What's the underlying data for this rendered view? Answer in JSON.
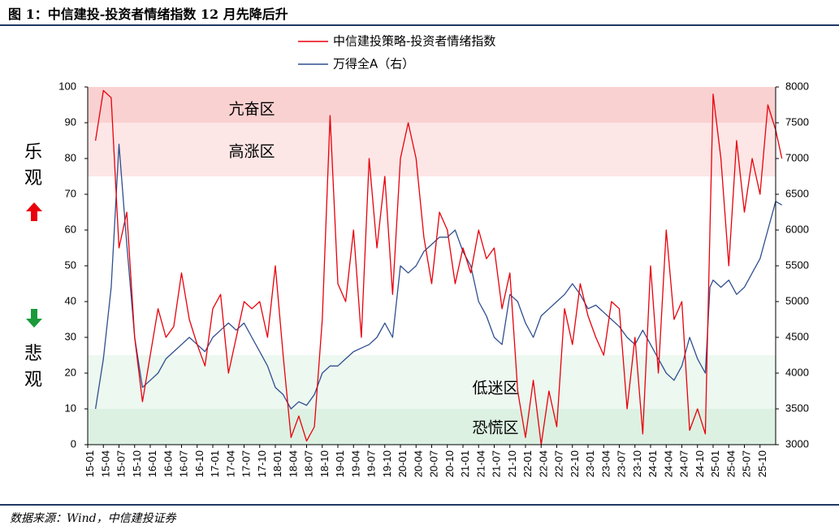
{
  "figure": {
    "title": "图 1：中信建投-投资者情绪指数 12 月先降后升",
    "source": "数据来源：Wind，中信建投证券",
    "side_top": [
      "乐",
      "观"
    ],
    "side_bottom": [
      "悲",
      "观"
    ],
    "arrow_up_color": "#e8000b",
    "arrow_down_color": "#1a9a3a"
  },
  "chart_data": {
    "type": "line",
    "legend_placement": "top-center",
    "grid": false,
    "x_ticks": [
      "15-01",
      "15-04",
      "15-07",
      "15-10",
      "16-01",
      "16-04",
      "16-07",
      "16-10",
      "17-01",
      "17-04",
      "17-07",
      "17-10",
      "18-01",
      "18-04",
      "18-07",
      "18-10",
      "19-01",
      "19-04",
      "19-07",
      "19-10",
      "20-01",
      "20-04",
      "20-07",
      "20-10",
      "21-01",
      "21-04",
      "21-07",
      "21-10",
      "22-01",
      "22-04",
      "22-07",
      "22-10",
      "23-01",
      "23-04",
      "23-07",
      "23-10",
      "24-01",
      "24-04",
      "24-07",
      "24-10",
      "25-01",
      "25-04",
      "25-07",
      "25-10"
    ],
    "y_left": {
      "min": 0,
      "max": 100,
      "ticks": [
        0,
        10,
        20,
        30,
        40,
        50,
        60,
        70,
        80,
        90,
        100
      ]
    },
    "y_right": {
      "min": 3000,
      "max": 8000,
      "ticks": [
        3000,
        3500,
        4000,
        4500,
        5000,
        5500,
        6000,
        6500,
        7000,
        7500,
        8000
      ]
    },
    "zones": [
      {
        "label": "亢奋区",
        "from": 90,
        "to": 100,
        "color": "#fad1d1"
      },
      {
        "label": "高涨区",
        "from": 75,
        "to": 90,
        "color": "#fde6e6"
      },
      {
        "label": "低迷区",
        "from": 10,
        "to": 25,
        "color": "#edf8f0"
      },
      {
        "label": "恐慌区",
        "from": 0,
        "to": 10,
        "color": "#dcf1e2"
      }
    ],
    "series": [
      {
        "name": "中信建投策略-投资者情绪指数",
        "axis": "left",
        "color": "#e8000b",
        "x_index": [
          0,
          0.5,
          1,
          1.5,
          2,
          2.5,
          3,
          3.5,
          4,
          4.5,
          5,
          5.5,
          6,
          6.5,
          7,
          7.5,
          8,
          8.5,
          9,
          9.5,
          10,
          10.5,
          11,
          11.5,
          12,
          12.5,
          13,
          13.5,
          14,
          14.5,
          15,
          15.5,
          16,
          16.5,
          17,
          17.5,
          18,
          18.5,
          19,
          19.5,
          20,
          20.5,
          21,
          21.5,
          22,
          22.5,
          23,
          23.5,
          24,
          24.5,
          25,
          25.5,
          26,
          26.5,
          27,
          27.5,
          28,
          28.5,
          29,
          29.5,
          30,
          30.5,
          31,
          31.5,
          32,
          32.5,
          33,
          33.5,
          34,
          34.5,
          35,
          35.5,
          36,
          36.5,
          37,
          37.5,
          38,
          38.5,
          39,
          39.3,
          39.5,
          40,
          40.5,
          41,
          41.5,
          42,
          42.5,
          43,
          43.5,
          43.9
        ],
        "values": [
          85,
          99,
          97,
          55,
          65,
          30,
          12,
          25,
          38,
          30,
          33,
          48,
          35,
          28,
          22,
          38,
          42,
          20,
          30,
          40,
          38,
          40,
          30,
          50,
          25,
          2,
          8,
          1,
          5,
          35,
          92,
          45,
          40,
          60,
          30,
          80,
          55,
          75,
          42,
          80,
          90,
          80,
          58,
          45,
          65,
          60,
          45,
          55,
          48,
          60,
          52,
          55,
          38,
          48,
          15,
          2,
          18,
          0,
          15,
          5,
          38,
          28,
          45,
          36,
          30,
          25,
          40,
          38,
          10,
          30,
          3,
          50,
          20,
          60,
          35,
          40,
          4,
          10,
          3,
          60,
          98,
          80,
          50,
          85,
          65,
          80,
          70,
          95,
          88,
          80
        ]
      },
      {
        "name": "万得全A（右）",
        "axis": "right",
        "color": "#2f4f8f",
        "x_index": [
          0,
          0.5,
          1,
          1.5,
          2,
          2.5,
          3,
          3.5,
          4,
          4.5,
          5,
          5.5,
          6,
          6.5,
          7,
          7.5,
          8,
          8.5,
          9,
          9.5,
          10,
          10.5,
          11,
          11.5,
          12,
          12.5,
          13,
          13.5,
          14,
          14.5,
          15,
          15.5,
          16,
          16.5,
          17,
          17.5,
          18,
          18.5,
          19,
          19.5,
          20,
          20.5,
          21,
          21.5,
          22,
          22.5,
          23,
          23.5,
          24,
          24.5,
          25,
          25.5,
          26,
          26.5,
          27,
          27.5,
          28,
          28.5,
          29,
          29.5,
          30,
          30.5,
          31,
          31.5,
          32,
          32.5,
          33,
          33.5,
          34,
          34.5,
          35,
          35.5,
          36,
          36.5,
          37,
          37.5,
          38,
          38.5,
          39,
          39.3,
          39.5,
          40,
          40.5,
          41,
          41.5,
          42,
          42.5,
          43,
          43.5,
          43.9
        ],
        "values": [
          3500,
          4200,
          5200,
          7200,
          5800,
          4500,
          3800,
          3900,
          4000,
          4200,
          4300,
          4400,
          4500,
          4400,
          4300,
          4500,
          4600,
          4700,
          4600,
          4700,
          4500,
          4300,
          4100,
          3800,
          3700,
          3500,
          3600,
          3550,
          3700,
          4000,
          4100,
          4100,
          4200,
          4300,
          4350,
          4400,
          4500,
          4700,
          4500,
          5500,
          5400,
          5500,
          5700,
          5800,
          5900,
          5900,
          6000,
          5700,
          5500,
          5000,
          4800,
          4500,
          4400,
          5100,
          5000,
          4700,
          4500,
          4800,
          4900,
          5000,
          5100,
          5250,
          5100,
          4900,
          4950,
          4850,
          4750,
          4650,
          4500,
          4400,
          4600,
          4400,
          4200,
          4000,
          3900,
          4100,
          4500,
          4200,
          4000,
          5200,
          5300,
          5200,
          5300,
          5100,
          5200,
          5400,
          5600,
          6000,
          6400,
          6350
        ]
      }
    ]
  }
}
